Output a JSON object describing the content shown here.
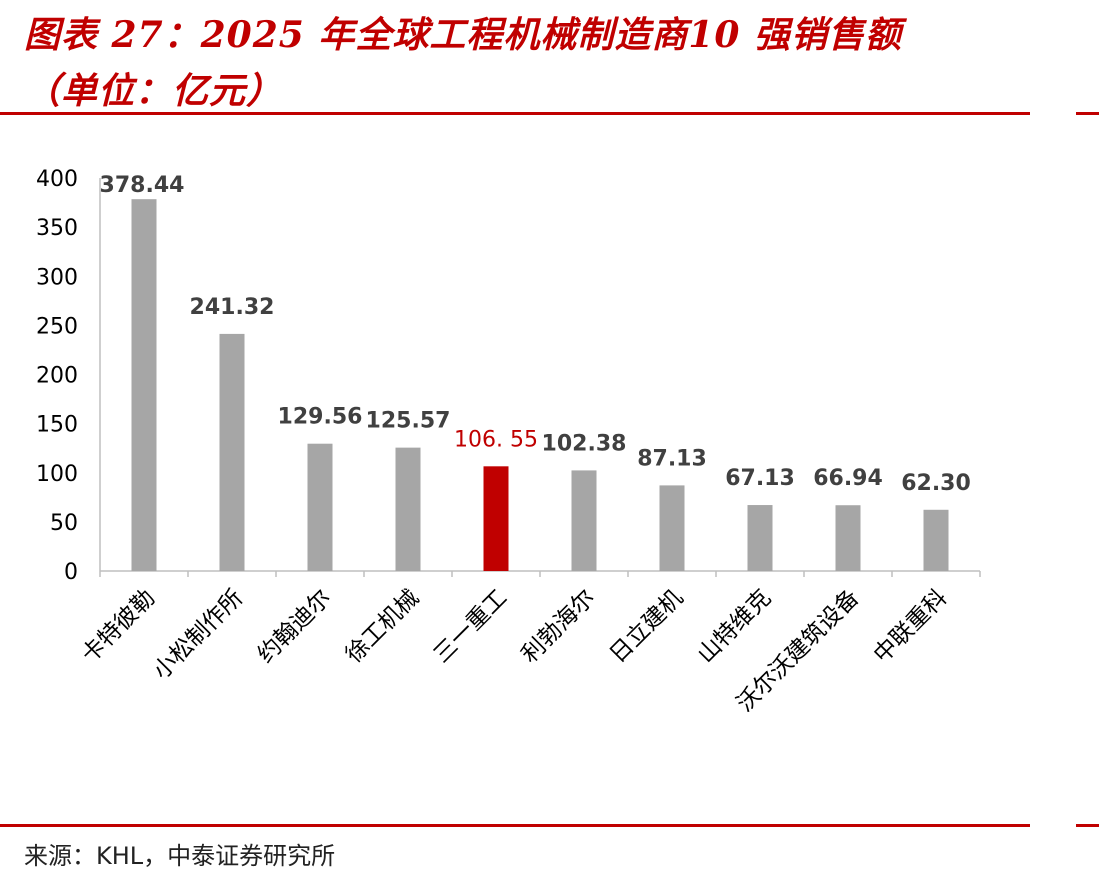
{
  "header": {
    "title_line1": "图表 27：2025 年全球工程机械制造商10 强销售额",
    "title_line2": "（单位：亿元）"
  },
  "footer": {
    "source": "来源：KHL，中泰证券研究所"
  },
  "colors": {
    "accent": "#c00000",
    "bar_default": "#a6a6a6",
    "bar_highlight": "#c00000",
    "label_default": "#404040",
    "axis": "#bfbfbf"
  },
  "chart_data": {
    "type": "bar",
    "categories": [
      "卡特彼勒",
      "小松制作所",
      "约翰迪尔",
      "徐工机械",
      "三一重工",
      "利勃海尔",
      "日立建机",
      "山特维克",
      "沃尔沃建筑设备",
      "中联重科"
    ],
    "values": [
      378.44,
      241.32,
      129.56,
      125.57,
      106.55,
      102.38,
      87.13,
      67.13,
      66.94,
      62.3
    ],
    "value_labels": [
      "378.44",
      "241.32",
      "129.56",
      "125.57",
      "106. 55",
      "102.38",
      "87.13",
      "67.13",
      "66.94",
      "62.30"
    ],
    "highlight_index": 4,
    "ylim": [
      0,
      400
    ],
    "yticks": [
      "0",
      "50",
      "100",
      "150",
      "200",
      "250",
      "300",
      "350",
      "400"
    ],
    "grid": false
  }
}
